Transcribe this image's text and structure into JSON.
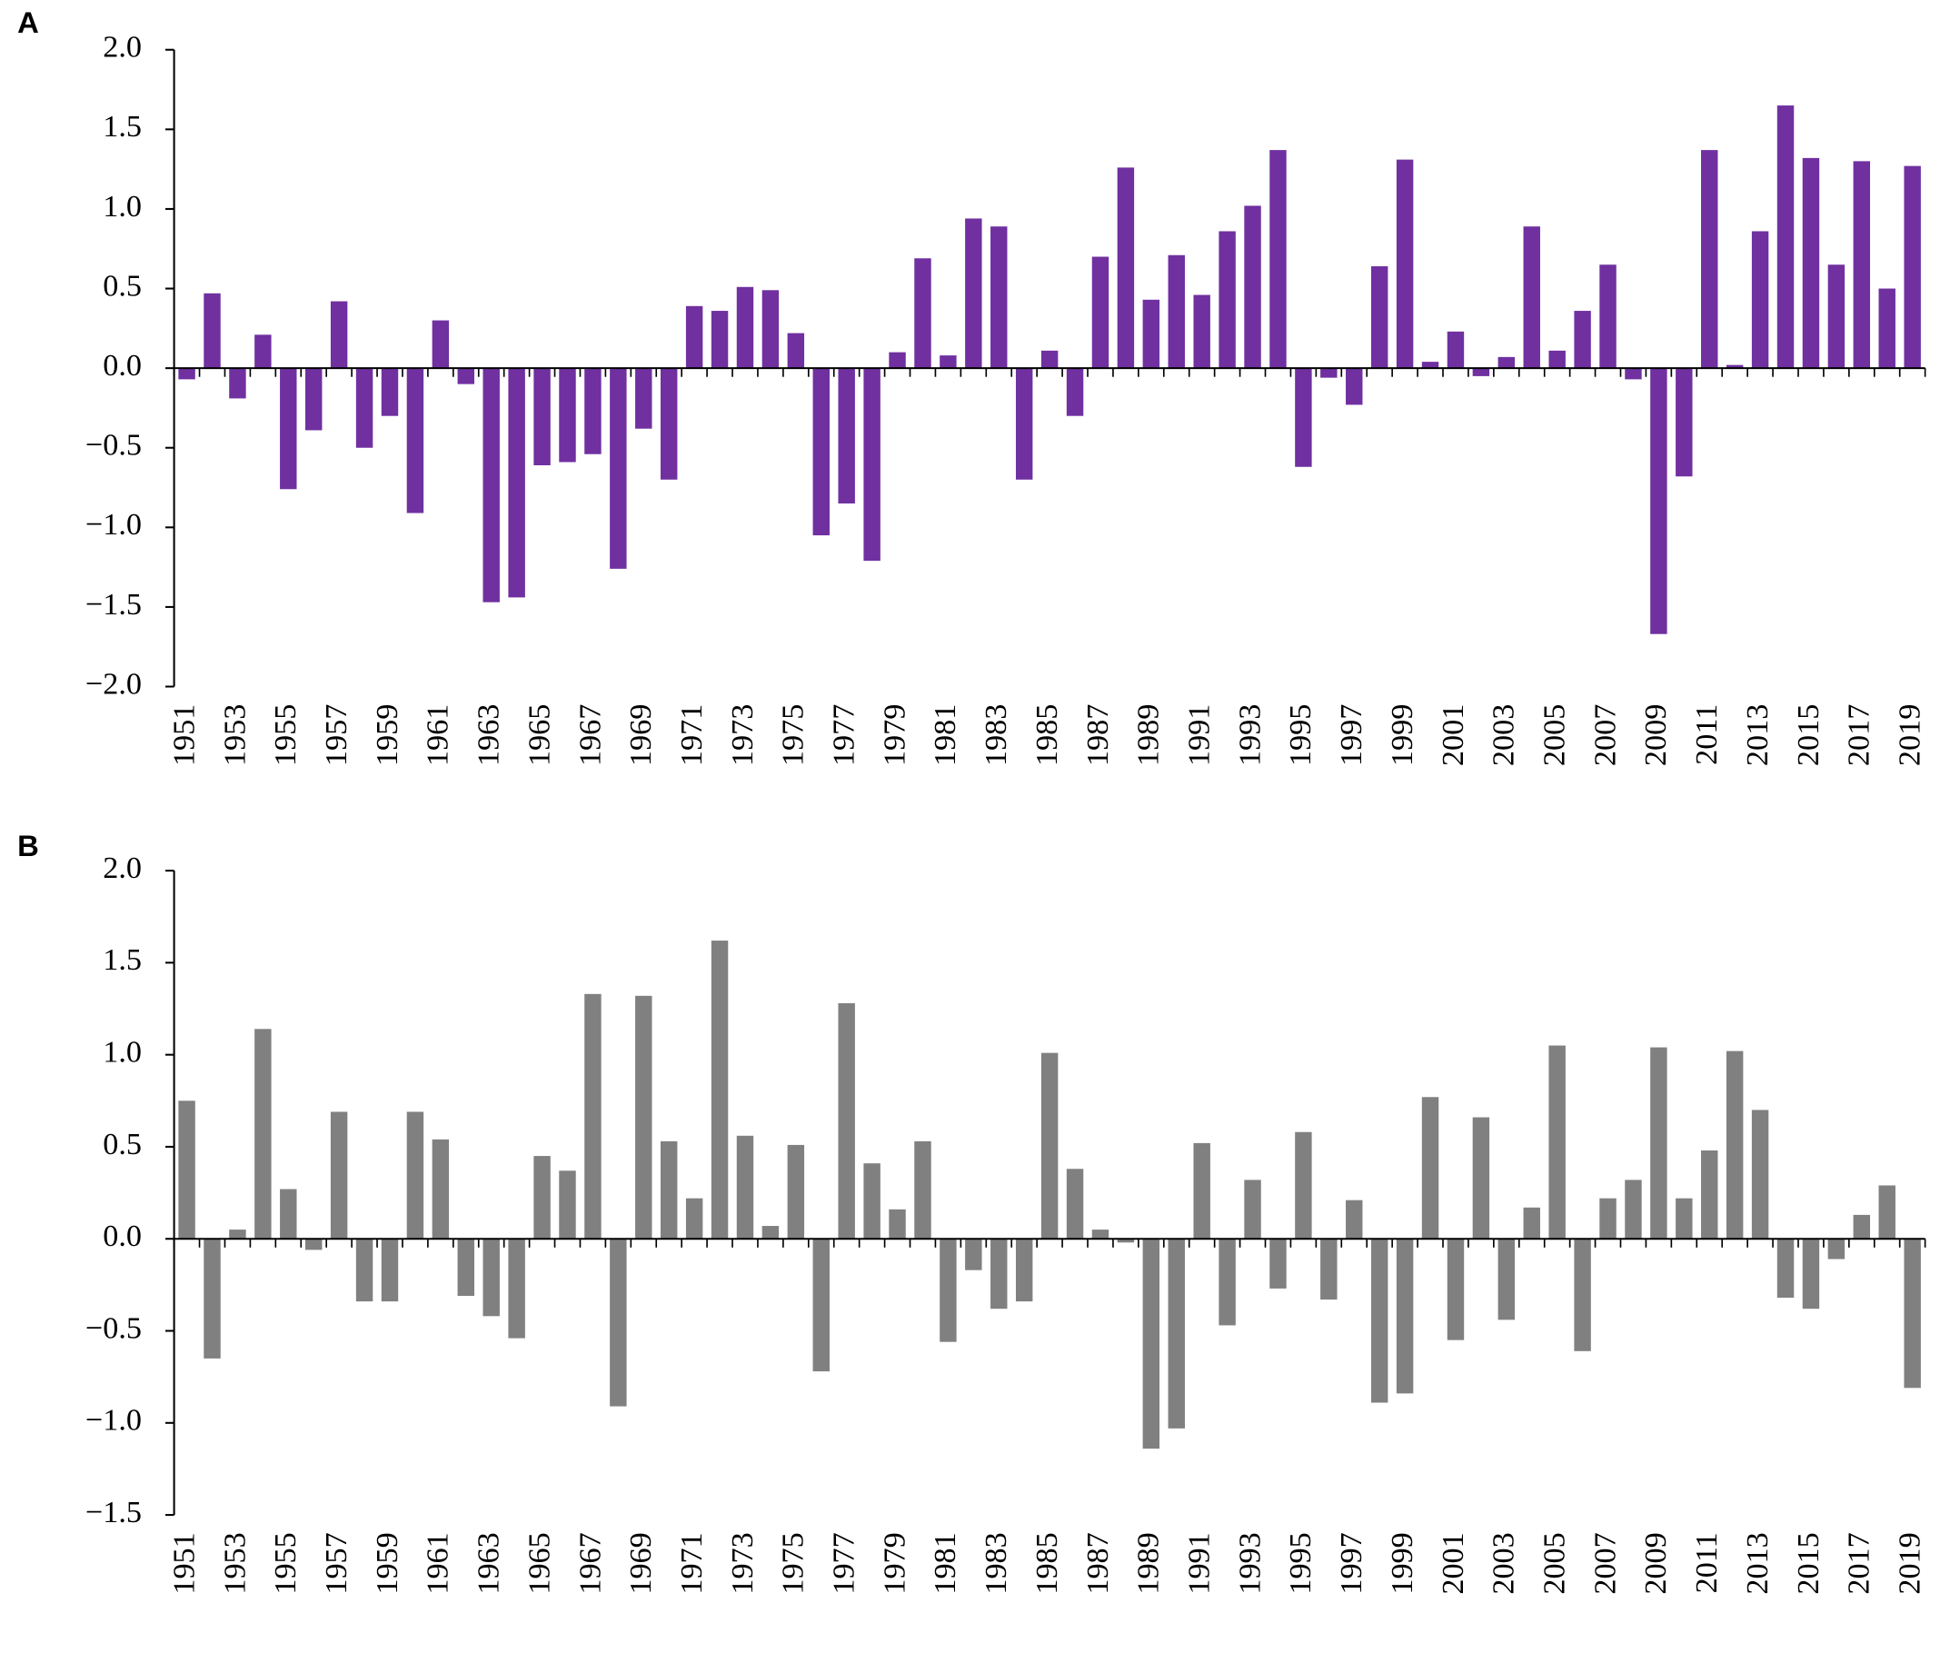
{
  "chart_data": [
    {
      "type": "bar",
      "panel": "A",
      "color": "#7030a0",
      "categories": [
        "1951",
        null,
        "1953",
        null,
        "1955",
        null,
        "1957",
        null,
        "1959",
        null,
        "1961",
        null,
        "1963",
        null,
        "1965",
        null,
        "1967",
        null,
        "1969",
        null,
        "1971",
        null,
        "1973",
        null,
        "1975",
        null,
        "1977",
        null,
        "1979",
        null,
        "1981",
        null,
        "1983",
        null,
        "1985",
        null,
        "1987",
        null,
        "1989",
        null,
        "1991",
        null,
        "1993",
        null,
        "1995",
        null,
        "1997",
        null,
        "1999",
        null,
        "2001",
        null,
        "2003",
        null,
        "2005",
        null,
        "2007",
        null,
        "2009",
        null,
        "2011",
        null,
        "2013",
        null,
        "2015",
        null,
        "2017",
        null,
        "2019"
      ],
      "values": [
        -0.07,
        0.47,
        -0.19,
        0.21,
        -0.76,
        -0.39,
        0.42,
        -0.5,
        -0.3,
        -0.91,
        0.3,
        -0.1,
        -1.47,
        -1.44,
        -0.61,
        -0.59,
        -0.54,
        -1.26,
        -0.38,
        -0.7,
        0.39,
        0.36,
        0.51,
        0.49,
        0.22,
        -1.05,
        -0.85,
        -1.21,
        0.1,
        0.69,
        0.08,
        0.94,
        0.89,
        -0.7,
        0.11,
        -0.3,
        0.7,
        1.26,
        0.43,
        0.71,
        0.46,
        0.86,
        1.02,
        1.37,
        -0.62,
        -0.06,
        -0.23,
        0.64,
        1.31,
        0.04,
        0.23,
        -0.05,
        0.07,
        0.89,
        0.11,
        0.36,
        0.65,
        -0.07,
        -1.67,
        -0.68,
        1.37,
        0.02,
        0.86,
        1.65,
        1.32,
        0.65,
        1.3,
        0.5,
        1.27
      ],
      "ylim": [
        -2,
        2
      ],
      "yticks": [
        {
          "value": -2,
          "label": "−2.0"
        },
        {
          "value": -1.5,
          "label": "−1.5"
        },
        {
          "value": -1,
          "label": "−1.0"
        },
        {
          "value": -0.5,
          "label": "−0.5"
        },
        {
          "value": 0,
          "label": "0.0"
        },
        0.5,
        {
          "value": 1,
          "label": "1.0"
        },
        1.5,
        {
          "value": 2,
          "label": "2.0"
        }
      ]
    },
    {
      "type": "bar",
      "panel": "B",
      "color": "#808080",
      "categories": [
        "1951",
        null,
        "1953",
        null,
        "1955",
        null,
        "1957",
        null,
        "1959",
        null,
        "1961",
        null,
        "1963",
        null,
        "1965",
        null,
        "1967",
        null,
        "1969",
        null,
        "1971",
        null,
        "1973",
        null,
        "1975",
        null,
        "1977",
        null,
        "1979",
        null,
        "1981",
        null,
        "1983",
        null,
        "1985",
        null,
        "1987",
        null,
        "1989",
        null,
        "1991",
        null,
        "1993",
        null,
        "1995",
        null,
        "1997",
        null,
        "1999",
        null,
        "2001",
        null,
        "2003",
        null,
        "2005",
        null,
        "2007",
        null,
        "2009",
        null,
        "2011",
        null,
        "2013",
        null,
        "2015",
        null,
        "2017",
        null,
        "2019"
      ],
      "values": [
        0.75,
        -0.65,
        0.05,
        1.14,
        0.27,
        -0.06,
        0.69,
        -0.34,
        -0.34,
        0.69,
        0.54,
        -0.31,
        -0.42,
        -0.54,
        0.45,
        0.37,
        1.33,
        -0.91,
        1.32,
        0.53,
        0.22,
        1.62,
        0.56,
        0.07,
        0.51,
        -0.72,
        1.28,
        0.41,
        0.16,
        0.53,
        -0.56,
        -0.17,
        -0.38,
        -0.34,
        1.01,
        0.38,
        0.05,
        -0.02,
        -1.14,
        -1.03,
        0.52,
        -0.47,
        0.32,
        -0.27,
        0.58,
        -0.33,
        0.21,
        -0.89,
        -0.84,
        0.77,
        -0.55,
        0.66,
        -0.44,
        0.17,
        1.05,
        -0.61,
        0.22,
        0.32,
        1.04,
        0.22,
        0.48,
        1.02,
        0.7,
        -0.32,
        -0.38,
        -0.11,
        0.13,
        0.29,
        -0.81
      ],
      "ylim": [
        -1.5,
        2
      ],
      "yticks": [
        {
          "value": -1.5,
          "label": "−1.5"
        },
        {
          "value": -1,
          "label": "−1.0"
        },
        {
          "value": -0.5,
          "label": "−0.5"
        },
        {
          "value": 0,
          "label": "0.0"
        },
        0.5,
        {
          "value": 1,
          "label": "1.0"
        },
        1.5,
        {
          "value": 2,
          "label": "2.0"
        }
      ]
    }
  ]
}
